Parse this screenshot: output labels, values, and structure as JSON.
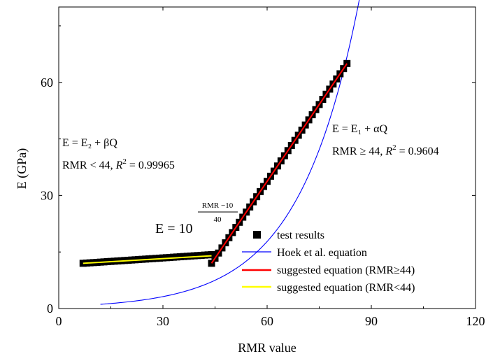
{
  "chart_data": {
    "type": "scatter",
    "xlabel": "RMR value",
    "ylabel": "E (GPa)",
    "xlim": [
      0,
      120
    ],
    "ylim": [
      0,
      80
    ],
    "xticks": [
      0,
      30,
      60,
      90,
      120
    ],
    "yticks": [
      0,
      30,
      60
    ],
    "grid": false,
    "legend_position": "bottom-right",
    "series": [
      {
        "name": "test results",
        "kind": "marker",
        "color": "#000000",
        "segments": [
          {
            "x": [
              7,
              8,
              9,
              10,
              11,
              12,
              13,
              14,
              15,
              16,
              17,
              18,
              19,
              20,
              21,
              22,
              23,
              24,
              25,
              26,
              27,
              28,
              29,
              30,
              31,
              32,
              33,
              34,
              35,
              36,
              37,
              38,
              39,
              40,
              41,
              42,
              43,
              44
            ],
            "y_from": 12.0,
            "y_to": 14.3
          },
          {
            "x": [
              44,
              45,
              46,
              47,
              48,
              49,
              50,
              51,
              52,
              53,
              54,
              55,
              56,
              57,
              58,
              59,
              60,
              61,
              62,
              63,
              64,
              65,
              66,
              67,
              68,
              69,
              70,
              71,
              72,
              73,
              74,
              75,
              76,
              77,
              78,
              79,
              80,
              81,
              82,
              83
            ],
            "y_from": 12.0,
            "y_to": 65.0
          }
        ]
      },
      {
        "name": "Hoek et al. equation",
        "kind": "curve",
        "color": "#0000ff",
        "formula": "E = 10^((RMR-10)/40)",
        "x_range": [
          12,
          107
        ]
      },
      {
        "name": "suggested equation (RMR≥44)",
        "kind": "line",
        "color": "#ff0000",
        "x": [
          44,
          83
        ],
        "y": [
          12.0,
          65.0
        ]
      },
      {
        "name": "suggested equation (RMR<44)",
        "kind": "line",
        "color": "#ffff00",
        "x": [
          7,
          44
        ],
        "y": [
          12.0,
          14.0
        ]
      }
    ],
    "annotations": {
      "left_eq": "E = E₂ + βQ",
      "left_fit_prefix": "RMR < 44, ",
      "left_fit_r2": " = 0.99965",
      "right_eq": "E = E₁ + αQ",
      "right_fit_prefix": "RMR ≥ 44, ",
      "right_fit_r2": " = 0.9604",
      "r_symbol": "R",
      "r_sup": "2",
      "hoek_lhs": "E = 10",
      "hoek_num": "RMR −10",
      "hoek_den": "40"
    }
  }
}
